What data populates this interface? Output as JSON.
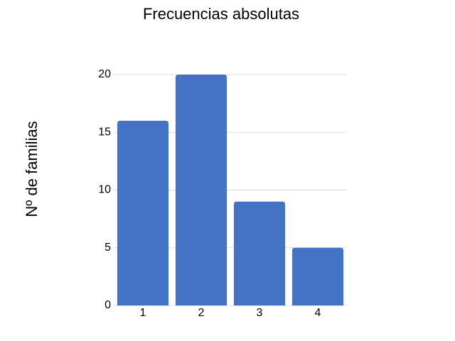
{
  "chart_data": {
    "type": "bar",
    "title": "Frecuencias absolutas",
    "y_label": "Nº de familias",
    "categories": [
      "1",
      "2",
      "3",
      "4"
    ],
    "values": [
      16,
      20,
      9,
      5
    ],
    "color": "#4472c4",
    "ylim": [
      0,
      20
    ],
    "yticks": [
      0,
      5,
      10,
      15,
      20
    ],
    "grid": true
  }
}
